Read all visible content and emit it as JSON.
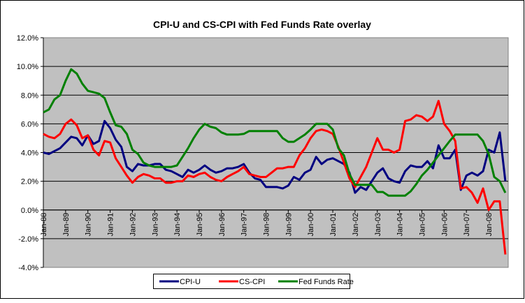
{
  "chart_data": {
    "type": "line",
    "title": "CPI-U and CS-CPI with Fed Funds Rate overlay",
    "xlabel": "",
    "ylabel": "",
    "ylim": [
      -4,
      12
    ],
    "y_ticks": [
      "-4.0%",
      "-2.0%",
      "0.0%",
      "2.0%",
      "4.0%",
      "6.0%",
      "8.0%",
      "10.0%",
      "12.0%"
    ],
    "x_ticks": [
      "Jan-88",
      "Jan-89",
      "Jan-90",
      "Jan-91",
      "Jan-92",
      "Jan-93",
      "Jan-94",
      "Jan-95",
      "Jan-96",
      "Jan-97",
      "Jan-98",
      "Jan-99",
      "Jan-00",
      "Jan-01",
      "Jan-02",
      "Jan-03",
      "Jan-04",
      "Jan-05",
      "Jan-06",
      "Jan-07",
      "Jan-08"
    ],
    "grid": true,
    "legend_position": "bottom",
    "background": "#C0C0C0",
    "x": [
      1988.0,
      1988.25,
      1988.5,
      1988.75,
      1989.0,
      1989.25,
      1989.5,
      1989.75,
      1990.0,
      1990.25,
      1990.5,
      1990.75,
      1991.0,
      1991.25,
      1991.5,
      1991.75,
      1992.0,
      1992.25,
      1992.5,
      1992.75,
      1993.0,
      1993.25,
      1993.5,
      1993.75,
      1994.0,
      1994.25,
      1994.5,
      1994.75,
      1995.0,
      1995.25,
      1995.5,
      1995.75,
      1996.0,
      1996.25,
      1996.5,
      1996.75,
      1997.0,
      1997.25,
      1997.5,
      1997.75,
      1998.0,
      1998.25,
      1998.5,
      1998.75,
      1999.0,
      1999.25,
      1999.5,
      1999.75,
      2000.0,
      2000.25,
      2000.5,
      2000.75,
      2001.0,
      2001.25,
      2001.5,
      2001.75,
      2002.0,
      2002.25,
      2002.5,
      2002.75,
      2003.0,
      2003.25,
      2003.5,
      2003.75,
      2004.0,
      2004.25,
      2004.5,
      2004.75,
      2005.0,
      2005.25,
      2005.5,
      2005.75,
      2006.0,
      2006.25,
      2006.5,
      2006.75,
      2007.0,
      2007.25,
      2007.5,
      2007.75,
      2008.0,
      2008.25,
      2008.5,
      2008.75
    ],
    "series": [
      {
        "name": "CPI-U",
        "color": "#000080",
        "values": [
          4.0,
          3.9,
          4.1,
          4.3,
          4.7,
          5.1,
          5.0,
          4.5,
          5.2,
          4.6,
          4.8,
          6.2,
          5.7,
          4.9,
          4.4,
          3.0,
          2.7,
          3.2,
          3.1,
          3.1,
          3.2,
          3.2,
          2.8,
          2.7,
          2.5,
          2.3,
          2.8,
          2.6,
          2.8,
          3.1,
          2.8,
          2.6,
          2.7,
          2.9,
          2.9,
          3.0,
          3.2,
          2.6,
          2.2,
          2.1,
          1.6,
          1.6,
          1.6,
          1.5,
          1.7,
          2.3,
          2.1,
          2.6,
          2.8,
          3.7,
          3.2,
          3.5,
          3.6,
          3.4,
          3.2,
          2.6,
          1.2,
          1.6,
          1.4,
          2.0,
          2.6,
          2.9,
          2.2,
          2.0,
          1.9,
          2.7,
          3.1,
          3.0,
          3.0,
          3.4,
          2.9,
          4.5,
          3.6,
          3.6,
          4.2,
          1.4,
          2.4,
          2.6,
          2.4,
          2.7,
          4.2,
          4.0,
          5.4,
          2.0
        ]
      },
      {
        "name": "CS-CPI",
        "color": "#FF0000",
        "values": [
          5.3,
          5.1,
          5.0,
          5.3,
          6.0,
          6.3,
          5.9,
          5.0,
          5.2,
          4.2,
          3.8,
          4.8,
          4.7,
          3.6,
          3.0,
          2.4,
          1.9,
          2.3,
          2.5,
          2.4,
          2.2,
          2.2,
          1.9,
          1.9,
          2.0,
          2.0,
          2.4,
          2.3,
          2.5,
          2.6,
          2.3,
          2.1,
          2.0,
          2.3,
          2.5,
          2.7,
          3.0,
          2.5,
          2.4,
          2.3,
          2.3,
          2.6,
          2.9,
          2.9,
          3.0,
          3.0,
          3.8,
          4.3,
          5.0,
          5.5,
          5.6,
          5.5,
          5.3,
          4.4,
          3.3,
          2.2,
          1.6,
          2.3,
          3.0,
          4.0,
          5.0,
          4.2,
          4.2,
          4.0,
          4.2,
          6.2,
          6.3,
          6.6,
          6.5,
          6.2,
          6.5,
          7.6,
          6.0,
          5.5,
          4.8,
          1.5,
          1.6,
          1.2,
          0.5,
          1.5,
          0.0,
          0.6,
          0.6,
          -3.1
        ]
      },
      {
        "name": "Fed Funds Rate",
        "color": "#008000",
        "values": [
          6.8,
          7.0,
          7.7,
          8.0,
          9.0,
          9.8,
          9.5,
          8.8,
          8.3,
          8.2,
          8.1,
          7.8,
          6.8,
          5.9,
          5.8,
          5.3,
          4.2,
          3.9,
          3.3,
          3.1,
          3.0,
          3.0,
          3.0,
          3.0,
          3.1,
          3.7,
          4.3,
          5.0,
          5.6,
          6.0,
          5.8,
          5.7,
          5.4,
          5.25,
          5.25,
          5.25,
          5.3,
          5.5,
          5.5,
          5.5,
          5.5,
          5.5,
          5.5,
          5.0,
          4.75,
          4.75,
          5.0,
          5.25,
          5.6,
          6.0,
          6.0,
          6.0,
          5.6,
          4.3,
          3.8,
          2.5,
          1.75,
          1.75,
          1.75,
          1.75,
          1.25,
          1.25,
          1.0,
          1.0,
          1.0,
          1.0,
          1.3,
          1.8,
          2.4,
          2.8,
          3.3,
          3.8,
          4.3,
          4.8,
          5.25,
          5.25,
          5.25,
          5.25,
          5.25,
          4.8,
          3.9,
          2.3,
          2.0,
          1.2
        ]
      }
    ]
  }
}
